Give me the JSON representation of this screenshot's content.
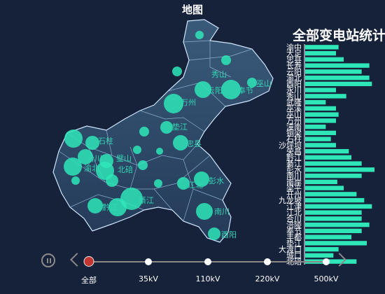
{
  "map_title": "地图",
  "stats_title": "全部变电站统计",
  "timeline": {
    "items": [
      "全部",
      "35kV",
      "110kV",
      "220kV",
      "500kV"
    ],
    "active_index": 0
  },
  "colors": {
    "accent": "#2ee6b8",
    "background": "#16213a",
    "active": "#c23531"
  },
  "icons": {
    "play": "pause-icon",
    "prev": "chevron-left-icon",
    "next": "chevron-right-icon"
  },
  "map_labels": [
    "万州",
    "云阳",
    "奉节",
    "巫山",
    "垫江",
    "忠县",
    "石柱",
    "合川",
    "璧山",
    "北碚",
    "渝北",
    "江北",
    "彭水",
    "黔江",
    "綦江",
    "南川",
    "酉阳",
    "秀山"
  ],
  "chart_data": {
    "type": "bar",
    "orientation": "horizontal",
    "categories": [
      "北碚",
      "城口",
      "大渡口",
      "垫江",
      "丰都",
      "奉节",
      "涪陵",
      "合川",
      "江北",
      "江津",
      "九龙坡",
      "开州",
      "梁平",
      "南岸",
      "南川",
      "彭水",
      "綦江",
      "黔江",
      "荣昌",
      "沙坪坝",
      "石柱",
      "铜梁",
      "潼南",
      "万州",
      "巫山",
      "巫溪",
      "武隆",
      "秀山",
      "永川",
      "酉阳",
      "渝北",
      "云阳",
      "长寿",
      "忠县",
      "大足",
      "渝中"
    ],
    "values": [
      40,
      22,
      26,
      48,
      36,
      44,
      50,
      44,
      44,
      52,
      46,
      40,
      30,
      25,
      44,
      54,
      44,
      36,
      34,
      24,
      20,
      24,
      16,
      24,
      26,
      24,
      16,
      32,
      24,
      52,
      50,
      44,
      50,
      30,
      24,
      26
    ],
    "xlim": [
      0,
      60
    ]
  }
}
